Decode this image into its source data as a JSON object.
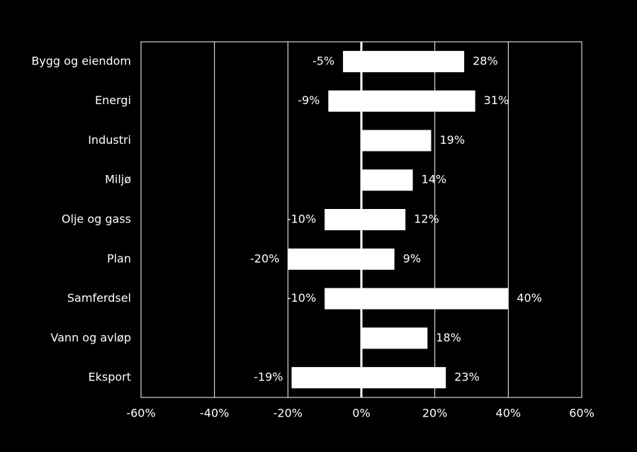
{
  "chart_data": {
    "type": "bar",
    "orientation": "horizontal",
    "stacked": true,
    "categories": [
      "Bygg og eiendom",
      "Energi",
      "Industri",
      "Miljø",
      "Olje og gass",
      "Plan",
      "Samferdsel",
      "Vann og avløp",
      "Eksport"
    ],
    "series": [
      {
        "color": "#ffffff",
        "values": [
          -5,
          -9,
          null,
          null,
          -10,
          -20,
          -10,
          null,
          -19
        ],
        "value_labels": [
          "-5%",
          "-9%",
          null,
          null,
          "-10%",
          "-20%",
          "-10%",
          null,
          "-19%"
        ]
      },
      {
        "color": "#ffffff",
        "values": [
          28,
          31,
          19,
          14,
          12,
          9,
          40,
          18,
          23
        ],
        "value_labels": [
          "28%",
          "31%",
          "19%",
          "14%",
          "12%",
          "9%",
          "40%",
          "18%",
          "23%"
        ]
      }
    ],
    "xlim": [
      -60,
      60
    ],
    "xticks": [
      {
        "value": -60,
        "label": "-60%"
      },
      {
        "value": -40,
        "label": "-40%"
      },
      {
        "value": -20,
        "label": "-20%"
      },
      {
        "value": 0,
        "label": "0%"
      },
      {
        "value": 20,
        "label": "20%"
      },
      {
        "value": 40,
        "label": "40%"
      },
      {
        "value": 60,
        "label": "60%"
      }
    ],
    "grid": true
  }
}
